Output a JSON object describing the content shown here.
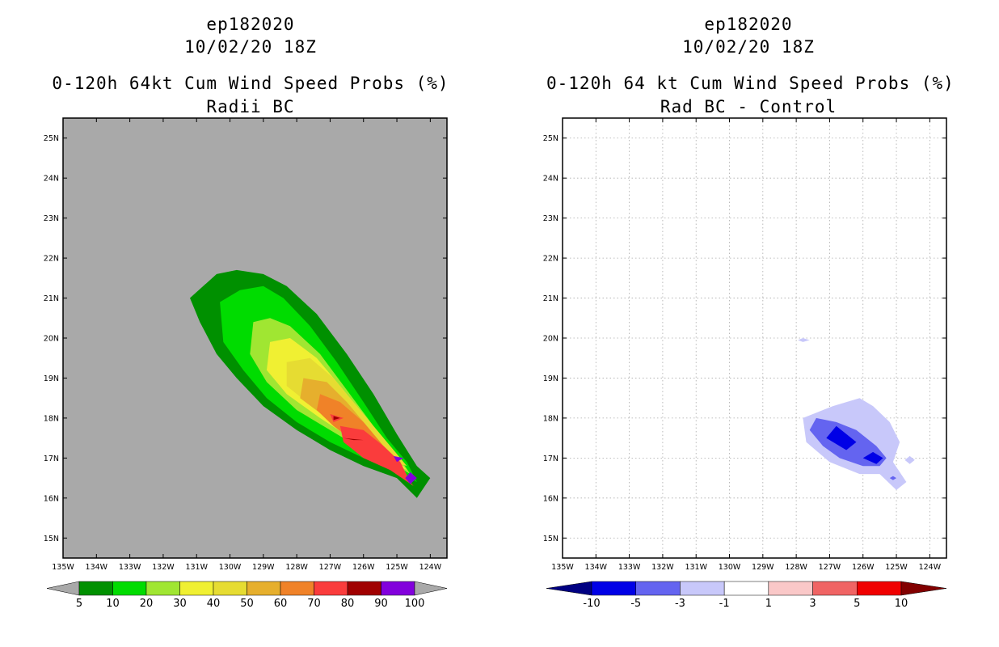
{
  "chart_data": [
    {
      "type": "contour-map",
      "storm_id": "ep182020",
      "datetime": "10/02/20 18Z",
      "title": "0-120h 64kt Cum Wind Speed Probs (%)",
      "subtitle": "Radii BC",
      "xlim": [
        -135,
        -123.5
      ],
      "ylim": [
        14.5,
        25.5
      ],
      "x_ticks": [
        "135W",
        "134W",
        "133W",
        "132W",
        "131W",
        "130W",
        "129W",
        "128W",
        "127W",
        "126W",
        "125W",
        "124W"
      ],
      "y_ticks": [
        "15N",
        "16N",
        "17N",
        "18N",
        "19N",
        "20N",
        "21N",
        "22N",
        "23N",
        "24N",
        "25N"
      ],
      "background": "#a9a9a9",
      "colorbar": {
        "labels": [
          "5",
          "10",
          "20",
          "30",
          "40",
          "50",
          "60",
          "70",
          "80",
          "90",
          "100"
        ],
        "colors": [
          "#009000",
          "#00dc00",
          "#a0e632",
          "#f0f032",
          "#e6dc32",
          "#e6af2d",
          "#f08228",
          "#fa3c3c",
          "#a00000",
          "#8200dc"
        ],
        "under_color": "#a9a9a9",
        "over_color": "#a9a9a9"
      },
      "contours": [
        {
          "level": 5,
          "color": "#009000",
          "points": [
            [
              -131.2,
              21.0
            ],
            [
              -130.4,
              21.6
            ],
            [
              -129.8,
              21.7
            ],
            [
              -129.0,
              21.6
            ],
            [
              -128.3,
              21.3
            ],
            [
              -127.4,
              20.6
            ],
            [
              -126.5,
              19.6
            ],
            [
              -125.7,
              18.6
            ],
            [
              -125.0,
              17.6
            ],
            [
              -124.4,
              16.8
            ],
            [
              -124.0,
              16.5
            ],
            [
              -124.4,
              16.0
            ],
            [
              -125.0,
              16.5
            ],
            [
              -126.0,
              16.8
            ],
            [
              -127.0,
              17.2
            ],
            [
              -128.0,
              17.7
            ],
            [
              -129.0,
              18.3
            ],
            [
              -129.8,
              19.0
            ],
            [
              -130.4,
              19.6
            ],
            [
              -130.9,
              20.4
            ]
          ]
        },
        {
          "level": 10,
          "color": "#00dc00",
          "points": [
            [
              -130.3,
              20.9
            ],
            [
              -129.7,
              21.2
            ],
            [
              -129.0,
              21.3
            ],
            [
              -128.4,
              21.0
            ],
            [
              -127.6,
              20.3
            ],
            [
              -126.8,
              19.4
            ],
            [
              -126.0,
              18.4
            ],
            [
              -125.3,
              17.5
            ],
            [
              -124.7,
              16.9
            ],
            [
              -124.4,
              16.4
            ],
            [
              -125.0,
              16.7
            ],
            [
              -126.0,
              17.0
            ],
            [
              -127.0,
              17.4
            ],
            [
              -128.0,
              17.9
            ],
            [
              -128.9,
              18.5
            ],
            [
              -129.6,
              19.2
            ],
            [
              -130.2,
              19.9
            ]
          ]
        },
        {
          "level": 20,
          "color": "#a0e632",
          "points": [
            [
              -129.3,
              20.4
            ],
            [
              -128.8,
              20.5
            ],
            [
              -128.2,
              20.3
            ],
            [
              -127.3,
              19.6
            ],
            [
              -126.5,
              18.7
            ],
            [
              -125.7,
              17.8
            ],
            [
              -125.0,
              17.1
            ],
            [
              -124.6,
              16.6
            ],
            [
              -125.0,
              16.8
            ],
            [
              -126.0,
              17.2
            ],
            [
              -127.0,
              17.7
            ],
            [
              -128.0,
              18.2
            ],
            [
              -128.9,
              18.9
            ],
            [
              -129.4,
              19.6
            ]
          ]
        },
        {
          "level": 30,
          "color": "#f0f032",
          "points": [
            [
              -128.8,
              19.9
            ],
            [
              -128.2,
              20.0
            ],
            [
              -127.4,
              19.5
            ],
            [
              -126.6,
              18.7
            ],
            [
              -125.8,
              17.8
            ],
            [
              -125.1,
              17.1
            ],
            [
              -124.7,
              16.7
            ],
            [
              -125.2,
              16.9
            ],
            [
              -126.2,
              17.4
            ],
            [
              -127.3,
              18.0
            ],
            [
              -128.3,
              18.6
            ],
            [
              -128.9,
              19.2
            ]
          ]
        },
        {
          "level": 40,
          "color": "#e6dc32",
          "points": [
            [
              -128.3,
              19.4
            ],
            [
              -127.6,
              19.5
            ],
            [
              -126.9,
              19.0
            ],
            [
              -126.2,
              18.3
            ],
            [
              -125.5,
              17.6
            ],
            [
              -124.9,
              17.0
            ],
            [
              -124.7,
              16.8
            ],
            [
              -125.4,
              17.0
            ],
            [
              -126.4,
              17.6
            ],
            [
              -127.4,
              18.2
            ],
            [
              -128.3,
              18.8
            ]
          ]
        },
        {
          "level": 50,
          "color": "#e6af2d",
          "points": [
            [
              -127.8,
              19.0
            ],
            [
              -127.1,
              18.9
            ],
            [
              -126.5,
              18.4
            ],
            [
              -125.8,
              17.7
            ],
            [
              -125.2,
              17.1
            ],
            [
              -124.8,
              16.8
            ],
            [
              -125.3,
              16.9
            ],
            [
              -126.3,
              17.5
            ],
            [
              -127.1,
              18.0
            ],
            [
              -127.9,
              18.5
            ]
          ]
        },
        {
          "level": 60,
          "color": "#f08228",
          "points": [
            [
              -127.3,
              18.6
            ],
            [
              -126.7,
              18.4
            ],
            [
              -126.0,
              17.9
            ],
            [
              -125.4,
              17.3
            ],
            [
              -124.9,
              16.9
            ],
            [
              -124.7,
              16.5
            ],
            [
              -125.2,
              16.8
            ],
            [
              -126.1,
              17.3
            ],
            [
              -126.9,
              17.8
            ],
            [
              -127.4,
              18.2
            ]
          ]
        },
        {
          "level": 70,
          "color": "#fa3c3c",
          "points": [
            [
              -126.7,
              17.8
            ],
            [
              -126.0,
              17.7
            ],
            [
              -125.4,
              17.3
            ],
            [
              -124.9,
              16.9
            ],
            [
              -124.6,
              16.4
            ],
            [
              -124.5,
              16.3
            ],
            [
              -125.2,
              16.7
            ],
            [
              -126.0,
              17.0
            ],
            [
              -126.6,
              17.4
            ]
          ]
        },
        {
          "level": 70,
          "color": "#fa3c3c",
          "points": [
            [
              -127.0,
              18.1
            ],
            [
              -126.6,
              18.0
            ],
            [
              -126.9,
              17.9
            ]
          ]
        },
        {
          "level": 80,
          "color": "#a00000",
          "points": [
            [
              -126.6,
              17.5
            ],
            [
              -126.0,
              17.45
            ],
            [
              -126.3,
              17.45
            ]
          ]
        },
        {
          "level": 80,
          "color": "#a00000",
          "points": [
            [
              -126.9,
              18.05
            ],
            [
              -126.7,
              18.0
            ],
            [
              -126.9,
              17.95
            ]
          ]
        },
        {
          "level": 90,
          "color": "#8200dc",
          "points": [
            [
              -125.1,
              17.05
            ],
            [
              -124.8,
              17.0
            ],
            [
              -125.0,
              16.9
            ]
          ]
        },
        {
          "level": 90,
          "color": "#8200dc",
          "points": [
            [
              -124.6,
              16.65
            ],
            [
              -124.4,
              16.5
            ],
            [
              -124.6,
              16.35
            ],
            [
              -124.75,
              16.5
            ]
          ]
        }
      ]
    },
    {
      "type": "contour-map",
      "storm_id": "ep182020",
      "datetime": "10/02/20 18Z",
      "title": "0-120h 64 kt Cum Wind Speed Probs (%)",
      "subtitle": "Rad BC - Control",
      "xlim": [
        -135,
        -123.5
      ],
      "ylim": [
        14.5,
        25.5
      ],
      "x_ticks": [
        "135W",
        "134W",
        "133W",
        "132W",
        "131W",
        "130W",
        "129W",
        "128W",
        "127W",
        "126W",
        "125W",
        "124W"
      ],
      "y_ticks": [
        "15N",
        "16N",
        "17N",
        "18N",
        "19N",
        "20N",
        "21N",
        "22N",
        "23N",
        "24N",
        "25N"
      ],
      "background": "#ffffff",
      "grid": true,
      "colorbar": {
        "labels": [
          "-10",
          "-5",
          "-3",
          "-1",
          "1",
          "3",
          "5",
          "10"
        ],
        "colors": [
          "#0000e6",
          "#6464f0",
          "#c8c8fa",
          "#ffffff",
          "#fac8c8",
          "#f06464",
          "#f00000"
        ],
        "under_color": "#000082",
        "over_color": "#820000"
      },
      "contours": [
        {
          "level": -1,
          "color": "#c8c8fa",
          "points": [
            [
              -127.8,
              18.0
            ],
            [
              -126.9,
              18.3
            ],
            [
              -126.1,
              18.5
            ],
            [
              -125.7,
              18.3
            ],
            [
              -125.2,
              17.9
            ],
            [
              -124.9,
              17.4
            ],
            [
              -125.1,
              16.9
            ],
            [
              -124.7,
              16.4
            ],
            [
              -125.0,
              16.2
            ],
            [
              -125.5,
              16.6
            ],
            [
              -126.1,
              16.6
            ],
            [
              -127.0,
              16.9
            ],
            [
              -127.7,
              17.4
            ]
          ]
        },
        {
          "level": -1,
          "color": "#c8c8fa",
          "points": [
            [
              -127.8,
              20.0
            ],
            [
              -127.6,
              19.95
            ],
            [
              -127.8,
              19.9
            ],
            [
              -127.95,
              19.95
            ]
          ]
        },
        {
          "level": -1,
          "color": "#c8c8fa",
          "points": [
            [
              -124.6,
              17.05
            ],
            [
              -124.45,
              16.95
            ],
            [
              -124.6,
              16.85
            ],
            [
              -124.75,
              16.95
            ]
          ]
        },
        {
          "level": -3,
          "color": "#6464f0",
          "points": [
            [
              -127.4,
              18.0
            ],
            [
              -126.8,
              17.9
            ],
            [
              -126.2,
              17.7
            ],
            [
              -125.6,
              17.3
            ],
            [
              -125.3,
              17.0
            ],
            [
              -125.5,
              16.8
            ],
            [
              -126.0,
              16.8
            ],
            [
              -126.7,
              17.0
            ],
            [
              -127.2,
              17.3
            ],
            [
              -127.6,
              17.7
            ]
          ]
        },
        {
          "level": -3,
          "color": "#6464f0",
          "points": [
            [
              -125.1,
              16.55
            ],
            [
              -125.0,
              16.5
            ],
            [
              -125.1,
              16.45
            ],
            [
              -125.2,
              16.5
            ]
          ]
        },
        {
          "level": -5,
          "color": "#0000e6",
          "points": [
            [
              -126.8,
              17.8
            ],
            [
              -126.2,
              17.4
            ],
            [
              -126.5,
              17.2
            ],
            [
              -127.1,
              17.5
            ]
          ]
        },
        {
          "level": -5,
          "color": "#0000e6",
          "points": [
            [
              -125.7,
              17.15
            ],
            [
              -125.4,
              17.0
            ],
            [
              -125.6,
              16.85
            ],
            [
              -126.0,
              17.0
            ]
          ]
        }
      ]
    }
  ]
}
